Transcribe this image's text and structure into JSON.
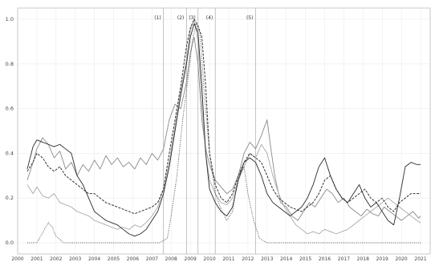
{
  "chart_data": {
    "type": "line",
    "title": "",
    "xlabel": "",
    "ylabel": "",
    "xlim": [
      2000,
      2021.5
    ],
    "ylim": [
      -0.05,
      1.05
    ],
    "x_ticks": [
      "2000",
      "2001",
      "2002",
      "2003",
      "2004",
      "2005",
      "2006",
      "2007",
      "2008",
      "2009",
      "2010",
      "2011",
      "2012",
      "2013",
      "2014",
      "2015",
      "2016",
      "2017",
      "2018",
      "2019",
      "2020",
      "2021"
    ],
    "y_ticks": [
      "0.0",
      "0.2",
      "0.4",
      "0.6",
      "0.8",
      "1.0"
    ],
    "grid": true,
    "events": [
      {
        "label": "(1)",
        "x": 2007.6
      },
      {
        "label": "(2)",
        "x": 2008.8
      },
      {
        "label": "(3)",
        "x": 2009.4
      },
      {
        "label": "(4)",
        "x": 2010.3
      },
      {
        "label": "(5)",
        "x": 2012.4
      }
    ],
    "series": [
      {
        "style": "solid-gray-noisy",
        "color": "#8a8a8a",
        "x": [
          2000.5,
          2000.8,
          2001.0,
          2001.3,
          2001.6,
          2001.9,
          2002.2,
          2002.5,
          2002.8,
          2003.1,
          2003.4,
          2003.7,
          2004.0,
          2004.3,
          2004.6,
          2004.9,
          2005.2,
          2005.5,
          2005.8,
          2006.1,
          2006.4,
          2006.7,
          2007.0,
          2007.3,
          2007.6,
          2007.9,
          2008.2,
          2008.5,
          2008.8,
          2009.0,
          2009.2,
          2009.4,
          2009.6,
          2009.8,
          2010.0,
          2010.3,
          2010.6,
          2010.9,
          2011.2,
          2011.5,
          2011.8,
          2012.1,
          2012.4,
          2012.7,
          2013.0,
          2013.2,
          2013.4,
          2013.7,
          2014.0,
          2014.3,
          2014.6,
          2014.9,
          2015.2,
          2015.5,
          2015.8,
          2016.1,
          2016.4,
          2016.7,
          2017.0,
          2017.3,
          2017.6,
          2017.9,
          2018.2,
          2018.5,
          2018.8,
          2019.1,
          2019.4,
          2019.7,
          2020.0,
          2020.3,
          2020.6,
          2020.9,
          2021.0
        ],
        "y": [
          0.28,
          0.36,
          0.42,
          0.47,
          0.44,
          0.38,
          0.41,
          0.33,
          0.36,
          0.3,
          0.35,
          0.32,
          0.37,
          0.33,
          0.39,
          0.35,
          0.38,
          0.34,
          0.36,
          0.33,
          0.38,
          0.35,
          0.4,
          0.37,
          0.42,
          0.55,
          0.62,
          0.6,
          0.72,
          0.85,
          0.92,
          0.8,
          0.55,
          0.42,
          0.35,
          0.28,
          0.25,
          0.22,
          0.24,
          0.3,
          0.4,
          0.45,
          0.42,
          0.48,
          0.55,
          0.42,
          0.3,
          0.18,
          0.16,
          0.12,
          0.1,
          0.14,
          0.18,
          0.16,
          0.2,
          0.24,
          0.22,
          0.18,
          0.2,
          0.16,
          0.14,
          0.12,
          0.15,
          0.13,
          0.12,
          0.16,
          0.14,
          0.12,
          0.1,
          0.12,
          0.14,
          0.11,
          0.12
        ]
      },
      {
        "style": "solid-gray-light",
        "color": "#a8a8a8",
        "x": [
          2000.5,
          2000.8,
          2001.0,
          2001.3,
          2001.6,
          2001.9,
          2002.2,
          2002.5,
          2002.8,
          2003.1,
          2003.4,
          2003.7,
          2004.0,
          2004.3,
          2004.6,
          2004.9,
          2005.2,
          2005.5,
          2005.8,
          2006.1,
          2006.4,
          2006.7,
          2007.0,
          2007.3,
          2007.6,
          2007.9,
          2008.2,
          2008.5,
          2008.8,
          2009.0,
          2009.2,
          2009.4,
          2009.6,
          2009.8,
          2010.0,
          2010.3,
          2010.6,
          2010.9,
          2011.2,
          2011.5,
          2011.8,
          2012.1,
          2012.4,
          2012.7,
          2013.0,
          2013.3,
          2013.6,
          2013.9,
          2014.2,
          2014.5,
          2014.8,
          2015.1,
          2015.4,
          2015.7,
          2016.0,
          2016.3,
          2016.6,
          2016.9,
          2017.2,
          2017.5,
          2017.8,
          2018.1,
          2018.4,
          2018.7,
          2019.0,
          2019.3,
          2019.6,
          2019.9,
          2020.2,
          2020.5,
          2020.8,
          2021.0
        ],
        "y": [
          0.26,
          0.22,
          0.25,
          0.21,
          0.2,
          0.22,
          0.18,
          0.17,
          0.16,
          0.14,
          0.13,
          0.12,
          0.1,
          0.09,
          0.08,
          0.07,
          0.06,
          0.07,
          0.06,
          0.08,
          0.07,
          0.09,
          0.12,
          0.16,
          0.24,
          0.36,
          0.52,
          0.68,
          0.82,
          0.95,
          1.0,
          0.9,
          0.62,
          0.4,
          0.28,
          0.22,
          0.18,
          0.17,
          0.2,
          0.28,
          0.34,
          0.4,
          0.38,
          0.44,
          0.4,
          0.3,
          0.22,
          0.16,
          0.12,
          0.08,
          0.06,
          0.04,
          0.05,
          0.04,
          0.06,
          0.05,
          0.04,
          0.05,
          0.06,
          0.08,
          0.1,
          0.12,
          0.14,
          0.16,
          0.18,
          0.2,
          0.18,
          0.16,
          0.14,
          0.12,
          0.1,
          0.09
        ]
      },
      {
        "style": "solid-dark",
        "color": "#2a2a2a",
        "x": [
          2000.5,
          2000.8,
          2001.0,
          2001.3,
          2001.6,
          2001.9,
          2002.2,
          2002.5,
          2002.8,
          2003.1,
          2003.4,
          2003.7,
          2004.0,
          2004.3,
          2004.6,
          2004.9,
          2005.2,
          2005.5,
          2005.8,
          2006.1,
          2006.4,
          2006.7,
          2007.0,
          2007.3,
          2007.6,
          2007.9,
          2008.2,
          2008.5,
          2008.8,
          2009.0,
          2009.2,
          2009.4,
          2009.6,
          2009.8,
          2010.0,
          2010.3,
          2010.6,
          2010.9,
          2011.2,
          2011.5,
          2011.8,
          2012.1,
          2012.4,
          2012.7,
          2013.0,
          2013.3,
          2013.6,
          2013.9,
          2014.2,
          2014.5,
          2014.8,
          2015.1,
          2015.4,
          2015.7,
          2016.0,
          2016.3,
          2016.6,
          2016.9,
          2017.2,
          2017.5,
          2017.8,
          2018.1,
          2018.4,
          2018.7,
          2019.0,
          2019.3,
          2019.6,
          2019.9,
          2020.2,
          2020.5,
          2020.8,
          2021.0
        ],
        "y": [
          0.33,
          0.43,
          0.46,
          0.45,
          0.44,
          0.43,
          0.44,
          0.42,
          0.4,
          0.3,
          0.26,
          0.2,
          0.14,
          0.12,
          0.1,
          0.09,
          0.08,
          0.06,
          0.04,
          0.03,
          0.04,
          0.06,
          0.1,
          0.14,
          0.22,
          0.34,
          0.5,
          0.66,
          0.8,
          0.92,
          0.98,
          0.94,
          0.7,
          0.4,
          0.24,
          0.18,
          0.14,
          0.12,
          0.16,
          0.28,
          0.36,
          0.38,
          0.36,
          0.3,
          0.22,
          0.18,
          0.16,
          0.14,
          0.12,
          0.14,
          0.16,
          0.2,
          0.26,
          0.34,
          0.38,
          0.3,
          0.24,
          0.2,
          0.18,
          0.22,
          0.26,
          0.2,
          0.16,
          0.18,
          0.14,
          0.1,
          0.08,
          0.2,
          0.34,
          0.36,
          0.35,
          0.35
        ]
      },
      {
        "style": "dashed",
        "color": "#333333",
        "x": [
          2000.5,
          2000.8,
          2001.0,
          2001.3,
          2001.6,
          2001.9,
          2002.2,
          2002.5,
          2002.8,
          2003.1,
          2003.4,
          2003.7,
          2004.0,
          2004.3,
          2004.6,
          2004.9,
          2005.2,
          2005.5,
          2005.8,
          2006.1,
          2006.4,
          2006.7,
          2007.0,
          2007.3,
          2007.6,
          2007.9,
          2008.2,
          2008.5,
          2008.8,
          2009.0,
          2009.2,
          2009.4,
          2009.6,
          2009.8,
          2010.0,
          2010.3,
          2010.6,
          2010.9,
          2011.2,
          2011.5,
          2011.8,
          2012.1,
          2012.4,
          2012.7,
          2013.0,
          2013.3,
          2013.6,
          2013.9,
          2014.2,
          2014.5,
          2014.8,
          2015.1,
          2015.4,
          2015.7,
          2016.0,
          2016.3,
          2016.6,
          2016.9,
          2017.2,
          2017.5,
          2017.8,
          2018.1,
          2018.4,
          2018.7,
          2019.0,
          2019.3,
          2019.6,
          2019.9,
          2020.2,
          2020.5,
          2020.8,
          2021.0
        ],
        "y": [
          0.32,
          0.36,
          0.4,
          0.38,
          0.34,
          0.32,
          0.34,
          0.3,
          0.28,
          0.26,
          0.24,
          0.22,
          0.22,
          0.2,
          0.18,
          0.17,
          0.16,
          0.15,
          0.14,
          0.13,
          0.14,
          0.15,
          0.16,
          0.18,
          0.24,
          0.4,
          0.55,
          0.7,
          0.88,
          0.96,
          1.0,
          0.97,
          0.92,
          0.7,
          0.4,
          0.26,
          0.2,
          0.18,
          0.22,
          0.3,
          0.36,
          0.4,
          0.38,
          0.36,
          0.3,
          0.24,
          0.2,
          0.18,
          0.16,
          0.15,
          0.14,
          0.16,
          0.18,
          0.22,
          0.28,
          0.3,
          0.24,
          0.2,
          0.18,
          0.2,
          0.22,
          0.24,
          0.2,
          0.18,
          0.2,
          0.16,
          0.14,
          0.18,
          0.2,
          0.22,
          0.22,
          0.22
        ]
      },
      {
        "style": "dotted",
        "color": "#333333",
        "x": [
          2000.5,
          2001.0,
          2001.4,
          2001.6,
          2001.8,
          2002.0,
          2002.4,
          2003.0,
          2004.0,
          2005.0,
          2006.0,
          2007.0,
          2007.4,
          2007.8,
          2008.0,
          2008.3,
          2008.6,
          2008.9,
          2009.1,
          2009.3,
          2009.5,
          2009.7,
          2010.0,
          2010.3,
          2010.6,
          2010.9,
          2011.2,
          2011.5,
          2011.8,
          2012.0,
          2012.3,
          2012.6,
          2013.0,
          2014.0,
          2015.0,
          2016.0,
          2017.0,
          2018.0,
          2019.0,
          2020.0,
          2021.0
        ],
        "y": [
          0.0,
          0.0,
          0.06,
          0.09,
          0.07,
          0.03,
          0.0,
          0.0,
          0.0,
          0.0,
          0.0,
          0.0,
          0.0,
          0.02,
          0.12,
          0.3,
          0.55,
          0.75,
          0.9,
          0.98,
          0.94,
          0.7,
          0.4,
          0.22,
          0.15,
          0.1,
          0.14,
          0.3,
          0.34,
          0.22,
          0.1,
          0.02,
          0.0,
          0.0,
          0.0,
          0.0,
          0.0,
          0.0,
          0.0,
          0.0,
          0.0
        ]
      }
    ]
  }
}
